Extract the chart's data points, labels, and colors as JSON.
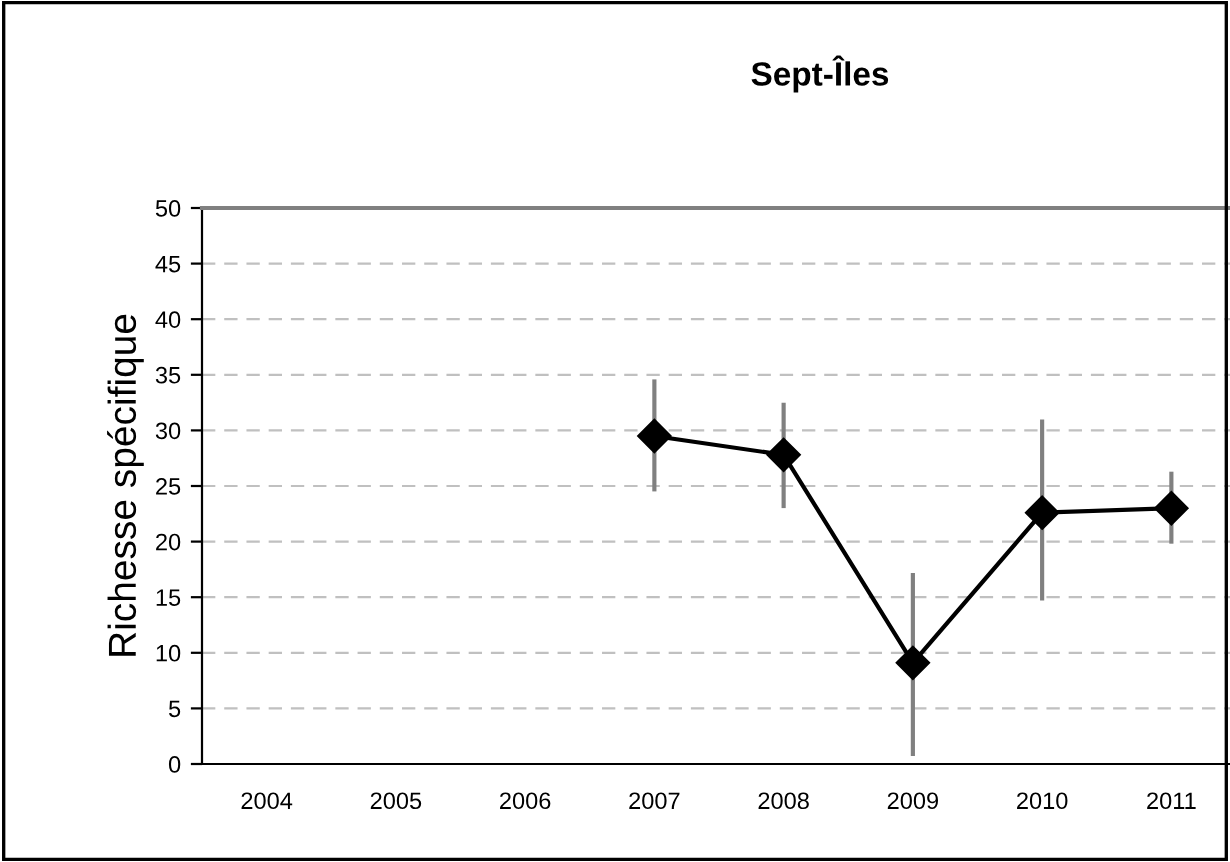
{
  "chart_data": {
    "type": "line",
    "title": "Sept-Îles",
    "ylabel": "Richesse spécifique",
    "categories": [
      "2004",
      "2005",
      "2006",
      "2007",
      "2008",
      "2009",
      "2010",
      "2011"
    ],
    "series": [
      {
        "color": "#000000",
        "values": [
          null,
          null,
          null,
          29.5,
          27.8,
          9.1,
          22.6,
          23.0
        ],
        "errors": [
          null,
          null,
          null,
          [
            24.7,
            34.4
          ],
          [
            23.2,
            32.3
          ],
          [
            0.9,
            17.0
          ],
          [
            14.9,
            30.8
          ],
          [
            20.0,
            26.1
          ]
        ]
      }
    ],
    "ylim": [
      0,
      50
    ],
    "yticks": [
      0,
      5,
      10,
      15,
      20,
      25,
      30,
      35,
      40,
      45,
      50
    ],
    "grid": "y",
    "marker": "diamond",
    "line_style": "solid",
    "legend": false
  }
}
